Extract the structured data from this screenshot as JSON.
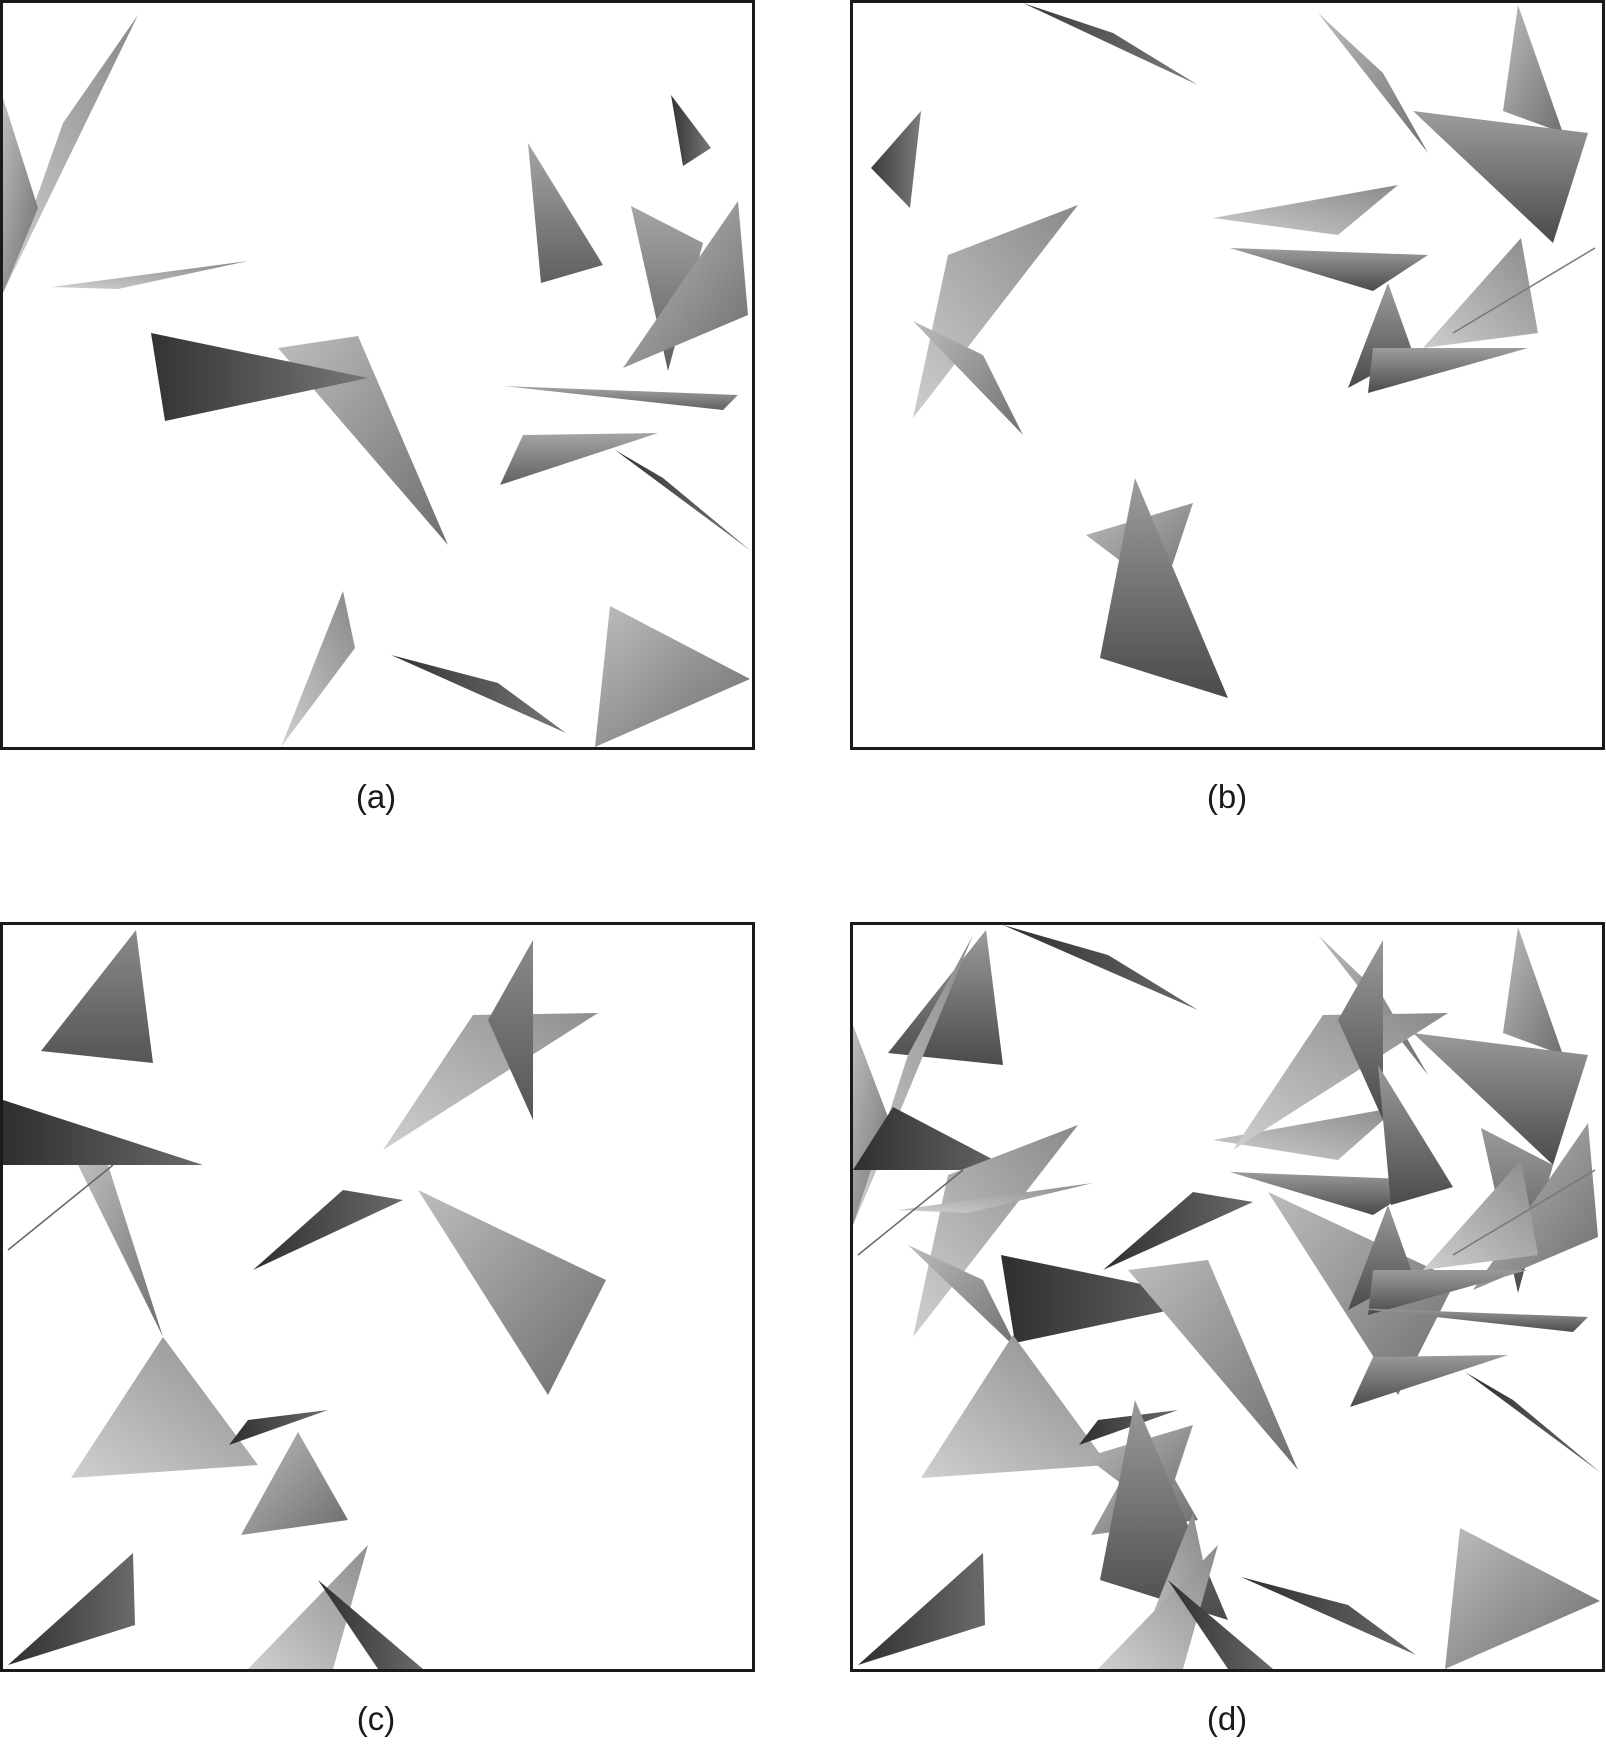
{
  "figure": {
    "panels": [
      {
        "id": "a",
        "caption": "(a)"
      },
      {
        "id": "b",
        "caption": "(b)"
      },
      {
        "id": "c",
        "caption": "(c)"
      },
      {
        "id": "d",
        "caption": "(d)"
      }
    ]
  },
  "colors": {
    "border": "#1a1a1a",
    "background": "#ffffff",
    "shade_dark": "#3a3a3a",
    "shade_mid": "#7a7a7a",
    "shade_light": "#b5b5b5"
  }
}
